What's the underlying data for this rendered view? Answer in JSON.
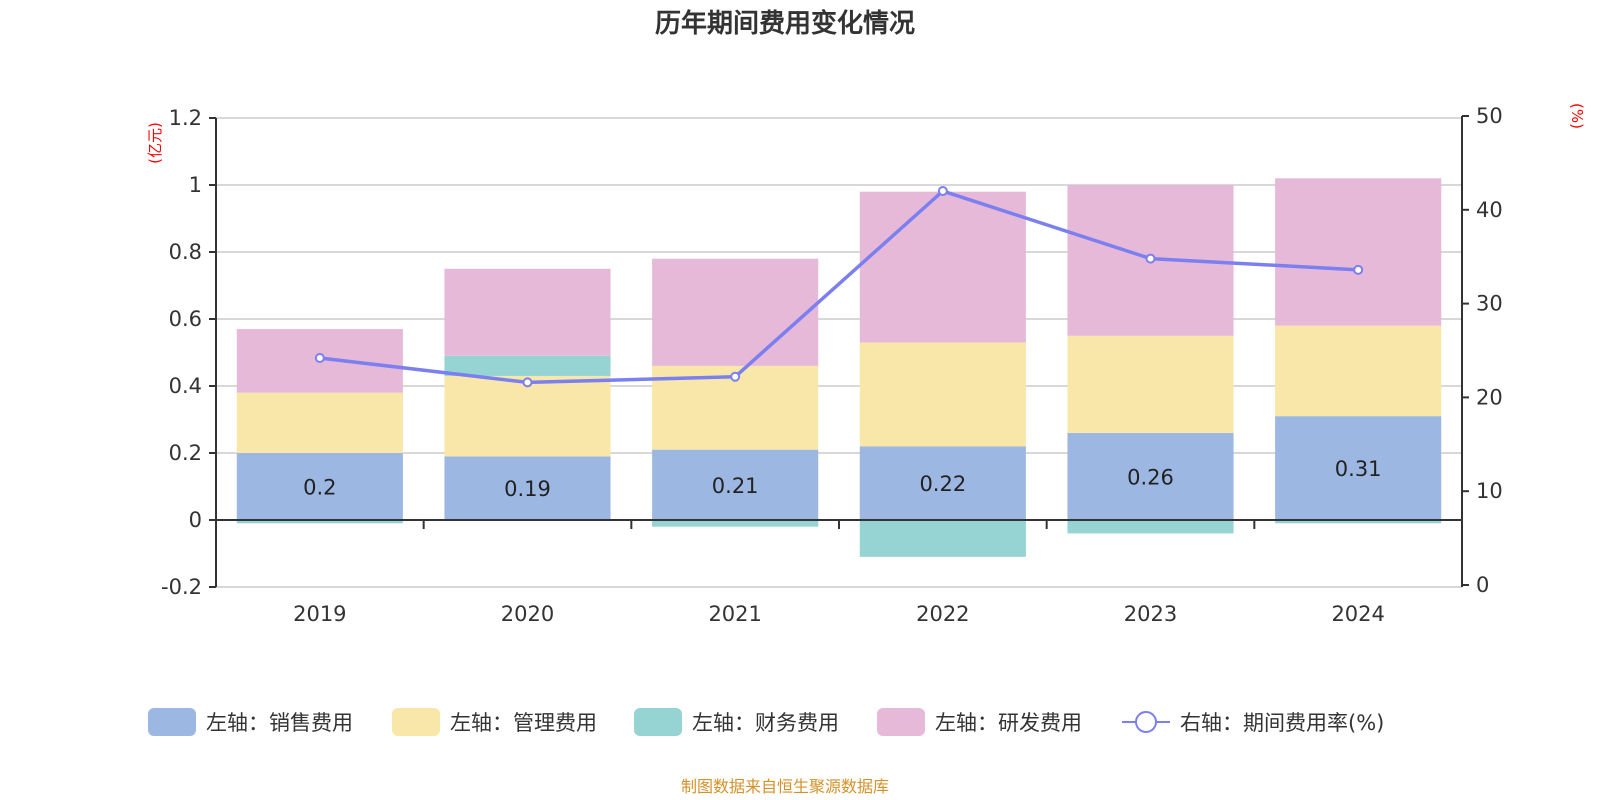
{
  "chart_data": {
    "type": "bar",
    "stacked": true,
    "title": "历年期间费用变化情况",
    "source": "制图数据来自恒生聚源数据库",
    "categories": [
      "2019",
      "2020",
      "2021",
      "2022",
      "2023",
      "2024"
    ],
    "left_axis": {
      "unit_label": "(亿元)",
      "ylim": [
        -0.2,
        1.2
      ],
      "ticks": [
        "-0.2",
        "0",
        "0.2",
        "0.4",
        "0.6",
        "0.8",
        "1",
        "1.2"
      ]
    },
    "right_axis": {
      "unit_label": "(%)",
      "ylim": [
        0,
        50
      ],
      "ticks": [
        "0",
        "10",
        "20",
        "30",
        "40",
        "50"
      ]
    },
    "grid": true,
    "legend_position": "bottom",
    "series": [
      {
        "name": "左轴：销售费用",
        "axis": "left",
        "type": "bar",
        "color": "#9cb8e2",
        "values": [
          0.2,
          0.19,
          0.21,
          0.22,
          0.26,
          0.31
        ],
        "labels": [
          "0.2",
          "0.19",
          "0.21",
          "0.22",
          "0.26",
          "0.31"
        ]
      },
      {
        "name": "左轴：管理费用",
        "axis": "left",
        "type": "bar",
        "color": "#f8e7a8",
        "values": [
          0.18,
          0.24,
          0.25,
          0.31,
          0.29,
          0.27
        ]
      },
      {
        "name": "左轴：财务费用",
        "axis": "left",
        "type": "bar",
        "color": "#96d4d4",
        "values": [
          -0.01,
          0.06,
          -0.02,
          -0.11,
          -0.04,
          -0.01
        ]
      },
      {
        "name": "左轴：研发费用",
        "axis": "left",
        "type": "bar",
        "color": "#e7b9d8",
        "values": [
          0.19,
          0.26,
          0.32,
          0.45,
          0.45,
          0.44
        ]
      },
      {
        "name": "右轴：期间费用率(%)",
        "axis": "right",
        "type": "line",
        "color": "#7b7ff0",
        "values": [
          24.2,
          21.6,
          22.2,
          42.0,
          34.8,
          33.6
        ]
      }
    ]
  }
}
